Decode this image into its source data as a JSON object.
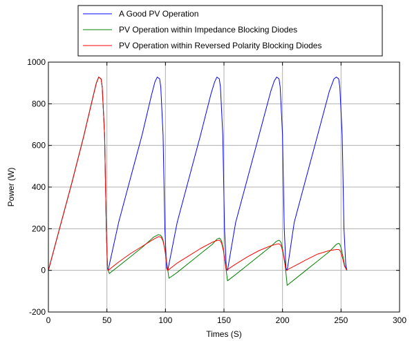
{
  "chart_data": {
    "type": "line",
    "xlabel": "Times (S)",
    "ylabel": "Power (W)",
    "xlim": [
      0,
      300
    ],
    "ylim": [
      -200,
      1000
    ],
    "xticks": [
      0,
      50,
      100,
      150,
      200,
      250,
      300
    ],
    "yticks": [
      -200,
      0,
      200,
      400,
      600,
      800,
      1000
    ],
    "grid": "vertical",
    "legend_position": "top",
    "series": [
      {
        "name": "A Good PV Operation",
        "color": "#0000ff",
        "x": [
          0,
          10,
          20,
          30,
          38,
          41,
          43,
          45,
          46,
          48,
          49.5,
          50.5,
          51,
          60,
          70,
          80,
          88,
          91,
          93,
          95,
          96,
          98,
          99.5,
          101,
          102,
          110,
          120,
          130,
          139,
          142,
          144,
          146,
          147,
          149,
          150.5,
          152,
          153,
          160,
          170,
          180,
          190,
          193,
          195,
          197,
          198,
          200,
          201.5,
          203,
          204,
          210,
          220,
          230,
          240,
          244,
          246,
          248,
          249,
          251,
          252.5,
          254,
          255
        ],
        "y": [
          0,
          210,
          420,
          640,
          830,
          900,
          928,
          920,
          880,
          650,
          200,
          10,
          0,
          230,
          440,
          650,
          840,
          905,
          928,
          920,
          880,
          650,
          200,
          10,
          0,
          230,
          440,
          650,
          850,
          905,
          928,
          920,
          880,
          650,
          200,
          10,
          0,
          230,
          440,
          650,
          860,
          910,
          928,
          920,
          880,
          650,
          200,
          10,
          0,
          230,
          440,
          650,
          860,
          920,
          928,
          920,
          880,
          650,
          200,
          30,
          0
        ]
      },
      {
        "name": "PV Operation within Impedance Blocking Diodes",
        "color": "#008000",
        "x": [
          0,
          10,
          20,
          30,
          38,
          41,
          43,
          45,
          46,
          48,
          49.5,
          50.5,
          52,
          60,
          70,
          80,
          90,
          94,
          96,
          97,
          98,
          99.5,
          101,
          103,
          110,
          120,
          130,
          140,
          144,
          146,
          147,
          148,
          149.5,
          151,
          153,
          160,
          170,
          180,
          190,
          195,
          197,
          198,
          199,
          200.5,
          202,
          204,
          210,
          220,
          230,
          240,
          246,
          248,
          249,
          250,
          251.5,
          253,
          255
        ],
        "y": [
          0,
          210,
          420,
          640,
          830,
          900,
          928,
          920,
          880,
          650,
          200,
          10,
          -15,
          20,
          65,
          110,
          160,
          172,
          168,
          160,
          145,
          100,
          40,
          -38,
          -10,
          35,
          80,
          125,
          150,
          155,
          150,
          140,
          100,
          40,
          -50,
          -20,
          25,
          70,
          115,
          140,
          145,
          140,
          130,
          90,
          40,
          -72,
          -45,
          0,
          45,
          90,
          125,
          130,
          125,
          110,
          70,
          25,
          0
        ]
      },
      {
        "name": "PV Operation within Reversed Polarity Blocking Diodes",
        "color": "#ff0000",
        "x": [
          0,
          10,
          20,
          30,
          38,
          41,
          43,
          45,
          46,
          48,
          49.5,
          50.5,
          51,
          60,
          70,
          80,
          90,
          94,
          96,
          97,
          98,
          99.5,
          101,
          102,
          110,
          120,
          130,
          140,
          144,
          146,
          147,
          148,
          149.5,
          151,
          152,
          160,
          170,
          180,
          190,
          195,
          197,
          198,
          199,
          200.5,
          202,
          203,
          210,
          220,
          230,
          240,
          246,
          248,
          249,
          250,
          251.5,
          253,
          255
        ],
        "y": [
          0,
          210,
          420,
          640,
          830,
          900,
          928,
          920,
          880,
          650,
          200,
          10,
          0,
          40,
          80,
          115,
          150,
          162,
          160,
          152,
          140,
          100,
          40,
          0,
          35,
          70,
          105,
          135,
          143,
          145,
          140,
          130,
          95,
          35,
          0,
          30,
          65,
          95,
          118,
          126,
          128,
          124,
          115,
          85,
          30,
          0,
          20,
          50,
          78,
          95,
          100,
          100,
          96,
          85,
          55,
          20,
          0
        ]
      }
    ]
  }
}
